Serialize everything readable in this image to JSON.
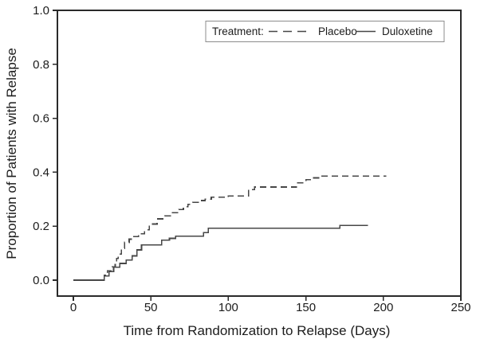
{
  "figure": {
    "background": "#ffffff",
    "frame_color": "#2a2a2a",
    "curve_color": "#474747",
    "legend": {
      "title": "Treatment:",
      "border_color": "#8c8c8c",
      "entries": [
        {
          "label": "Placebo",
          "style": "dashed"
        },
        {
          "label": "Duloxetine",
          "style": "solid"
        }
      ]
    }
  },
  "chart_data": {
    "type": "line",
    "subtype": "kaplan-meier-step",
    "title": "",
    "xlabel": "Time from Randomization to Relapse (Days)",
    "ylabel": "Proportion of Patients with Relapse",
    "xlim": [
      0,
      250
    ],
    "ylim": [
      0,
      1.0
    ],
    "x_ticks": [
      0,
      50,
      100,
      150,
      200,
      250
    ],
    "y_ticks": [
      0.0,
      0.2,
      0.4,
      0.6,
      0.8,
      1.0
    ],
    "grid": false,
    "legend_position": "top-right-inside",
    "series": [
      {
        "name": "Placebo",
        "line_style": "dashed",
        "end_x": 202,
        "steps": [
          [
            0,
            0
          ],
          [
            20,
            0.018
          ],
          [
            22,
            0.035
          ],
          [
            25,
            0.05
          ],
          [
            27,
            0.065
          ],
          [
            28,
            0.08
          ],
          [
            29,
            0.097
          ],
          [
            31,
            0.118
          ],
          [
            33,
            0.14
          ],
          [
            36,
            0.152
          ],
          [
            39,
            0.162
          ],
          [
            42,
            0.172
          ],
          [
            46,
            0.186
          ],
          [
            49,
            0.208
          ],
          [
            54,
            0.227
          ],
          [
            59,
            0.238
          ],
          [
            63,
            0.25
          ],
          [
            68,
            0.262
          ],
          [
            71,
            0.272
          ],
          [
            74,
            0.281
          ],
          [
            77,
            0.288
          ],
          [
            81,
            0.295
          ],
          [
            85,
            0.3
          ],
          [
            89,
            0.307
          ],
          [
            100,
            0.312
          ],
          [
            113,
            0.336
          ],
          [
            117,
            0.345
          ],
          [
            144,
            0.361
          ],
          [
            150,
            0.372
          ],
          [
            155,
            0.379
          ],
          [
            160,
            0.386
          ]
        ]
      },
      {
        "name": "Duloxetine",
        "line_style": "solid",
        "end_x": 190,
        "steps": [
          [
            0,
            0
          ],
          [
            20,
            0.015
          ],
          [
            23,
            0.032
          ],
          [
            26,
            0.048
          ],
          [
            30,
            0.062
          ],
          [
            34,
            0.075
          ],
          [
            38,
            0.09
          ],
          [
            41,
            0.112
          ],
          [
            44,
            0.13
          ],
          [
            57,
            0.148
          ],
          [
            62,
            0.155
          ],
          [
            66,
            0.163
          ],
          [
            84,
            0.176
          ],
          [
            87,
            0.192
          ],
          [
            172,
            0.203
          ]
        ]
      }
    ]
  }
}
